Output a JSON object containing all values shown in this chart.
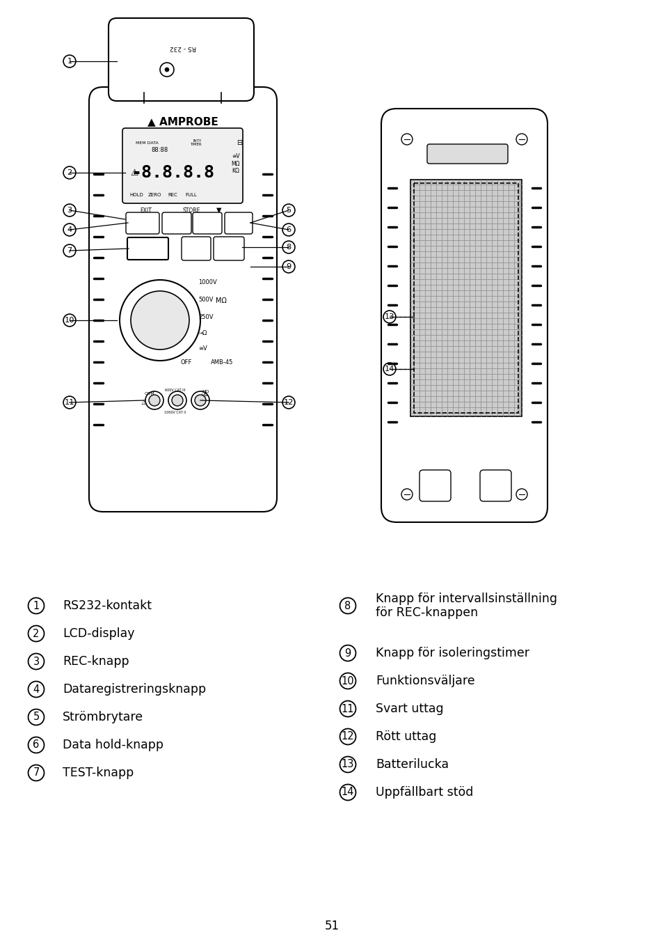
{
  "bg_color": "#ffffff",
  "page_number": "51",
  "left_items": [
    [
      "1",
      "RS232-kontakt"
    ],
    [
      "2",
      "LCD-display"
    ],
    [
      "3",
      "REC-knapp"
    ],
    [
      "4",
      "Dataregistreringsknapp"
    ],
    [
      "5",
      "Strömbrytare"
    ],
    [
      "6",
      "Data hold-knapp"
    ],
    [
      "7",
      "TEST-knapp"
    ]
  ],
  "right_items": [
    [
      "8",
      "Knapp för intervallsinställning\nför REC-knappen"
    ],
    [
      "9",
      "Knapp för isoleringstimer"
    ],
    [
      "10",
      "Funktionsväljare"
    ],
    [
      "11",
      "Svart uttag"
    ],
    [
      "12",
      "Rött uttag"
    ],
    [
      "13",
      "Batterilucka"
    ],
    [
      "14",
      "Uppfällbart stöd"
    ]
  ]
}
